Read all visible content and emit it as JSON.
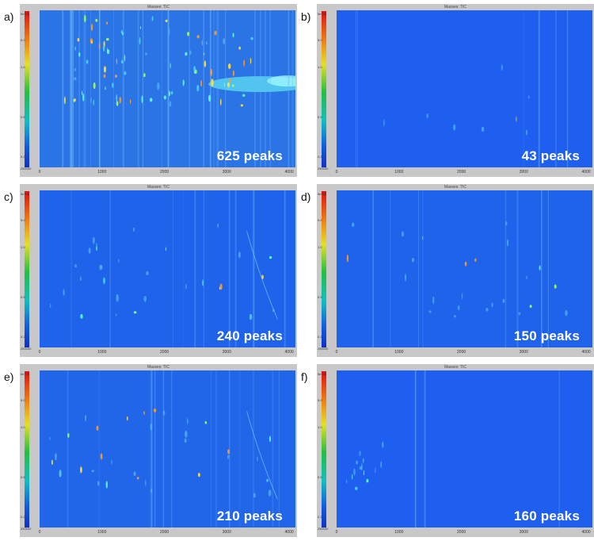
{
  "frame_title": "Masses: TIC",
  "colorbar_labels": [
    "5e+08",
    "5.0",
    "1.0",
    "0.5",
    "0.2",
    "250000"
  ],
  "x_tick_labels": [
    "0",
    "1000",
    "2000",
    "3000",
    "4000"
  ],
  "colors": {
    "background_blue": "#1f63ea",
    "frame_gray": "#c8c8c8"
  },
  "chart_data": [
    {
      "type": "heatmap",
      "panel": "a)",
      "label": "625 peaks",
      "peaks": 625,
      "xlim": [
        0,
        4100
      ],
      "xticks": [
        0,
        1000,
        2000,
        3000,
        4000
      ]
    },
    {
      "type": "heatmap",
      "panel": "b)",
      "label": "43 peaks",
      "peaks": 43,
      "xlim": [
        0,
        4100
      ],
      "xticks": [
        0,
        1000,
        2000,
        3000,
        4000
      ]
    },
    {
      "type": "heatmap",
      "panel": "c)",
      "label": "240 peaks",
      "peaks": 240,
      "xlim": [
        0,
        4100
      ],
      "xticks": [
        0,
        1000,
        2000,
        3000,
        4000
      ]
    },
    {
      "type": "heatmap",
      "panel": "d)",
      "label": "150 peaks",
      "peaks": 150,
      "xlim": [
        0,
        4100
      ],
      "xticks": [
        0,
        1000,
        2000,
        3000,
        4000
      ]
    },
    {
      "type": "heatmap",
      "panel": "e)",
      "label": "210 peaks",
      "peaks": 210,
      "xlim": [
        0,
        4100
      ],
      "xticks": [
        0,
        1000,
        2000,
        3000,
        4000
      ]
    },
    {
      "type": "heatmap",
      "panel": "f)",
      "label": "160 peaks",
      "peaks": 160,
      "xlim": [
        0,
        4100
      ],
      "xticks": [
        0,
        1000,
        2000,
        3000,
        4000
      ]
    }
  ]
}
